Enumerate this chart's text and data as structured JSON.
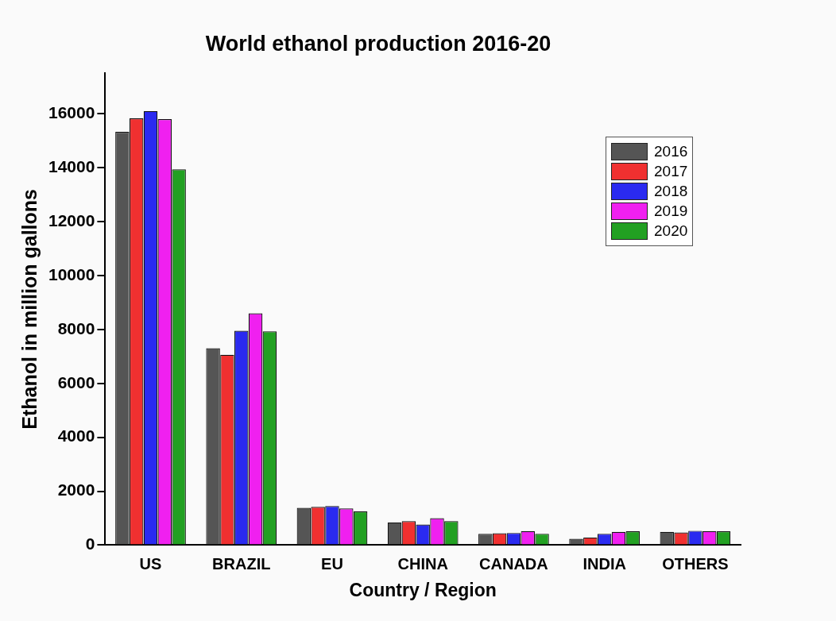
{
  "chart_data": {
    "type": "bar",
    "title": "World ethanol production 2016-20",
    "xlabel": "Country / Region",
    "ylabel": "Ethanol in million gallons",
    "categories": [
      "US",
      "BRAZIL",
      "EU",
      "CHINA",
      "CANADA",
      "INDIA",
      "OTHERS"
    ],
    "series": [
      {
        "name": "2016",
        "color": "#555555",
        "values": [
          15330,
          7300,
          1380,
          840,
          420,
          230,
          490
        ]
      },
      {
        "name": "2017",
        "color": "#f03030",
        "values": [
          15830,
          7060,
          1420,
          890,
          440,
          280,
          470
        ]
      },
      {
        "name": "2018",
        "color": "#2a2af0",
        "values": [
          16100,
          7950,
          1450,
          760,
          450,
          420,
          530
        ]
      },
      {
        "name": "2019",
        "color": "#f020f0",
        "values": [
          15800,
          8600,
          1360,
          1000,
          520,
          490,
          520
        ]
      },
      {
        "name": "2020",
        "color": "#22a022",
        "values": [
          13940,
          7930,
          1250,
          890,
          420,
          510,
          510
        ]
      }
    ],
    "ylim": [
      0,
      17500
    ],
    "yticks": [
      0,
      2000,
      4000,
      6000,
      8000,
      10000,
      12000,
      14000,
      16000
    ],
    "grid": false,
    "legend": "top right"
  }
}
